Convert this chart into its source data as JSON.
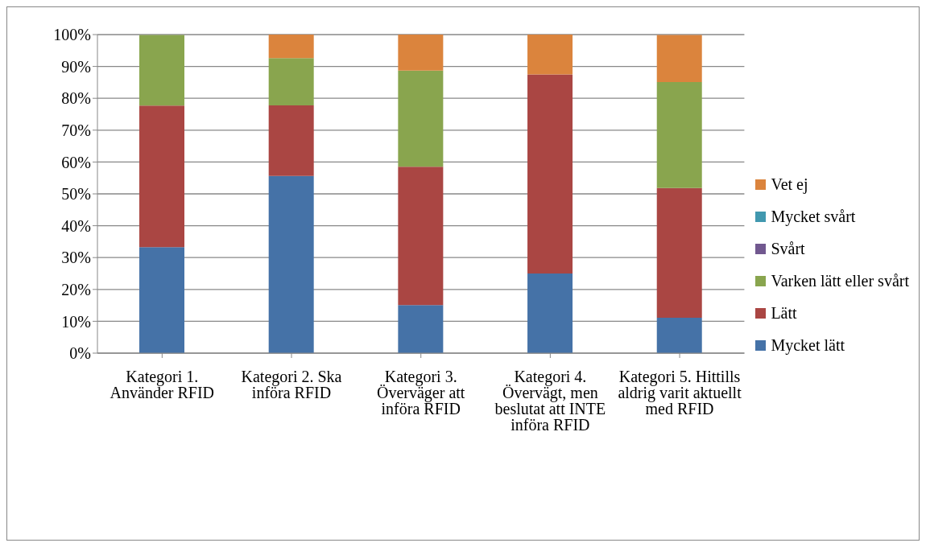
{
  "chart_data": {
    "type": "bar",
    "stacked": true,
    "categories": [
      "Kategori 1. Använder RFID",
      "Kategori 2. Ska införa RFID",
      "Kategori 3. Överväger att införa RFID",
      "Kategori 4. Övervägt, men beslutat att INTE införa RFID",
      "Kategori 5. Hittills aldrig varit aktuellt med RFID"
    ],
    "series": [
      {
        "name": "Mycket lätt",
        "color": "#4572a7",
        "values": [
          33.3,
          55.6,
          15.1,
          25,
          11.1
        ]
      },
      {
        "name": "Lätt",
        "color": "#aa4643",
        "values": [
          44.4,
          22.2,
          43.4,
          62.5,
          40.7
        ]
      },
      {
        "name": "Varken lätt eller svårt",
        "color": "#89a54e",
        "values": [
          22.2,
          14.8,
          30.2,
          0,
          33.3
        ]
      },
      {
        "name": "Svårt",
        "color": "#71588f",
        "values": [
          0,
          0,
          0,
          0,
          0
        ]
      },
      {
        "name": "Mycket svårt",
        "color": "#4198af",
        "values": [
          0,
          0,
          0,
          0,
          0
        ]
      },
      {
        "name": "Vet ej",
        "color": "#db843d",
        "values": [
          0,
          7.4,
          11.3,
          12.5,
          14.8
        ]
      }
    ],
    "ylim": [
      0,
      100
    ],
    "yticks": [
      {
        "value": 0,
        "label": "0%"
      },
      {
        "value": 10,
        "label": "10%"
      },
      {
        "value": 20,
        "label": "20%"
      },
      {
        "value": 30,
        "label": "30%"
      },
      {
        "value": 40,
        "label": "40%"
      },
      {
        "value": 50,
        "label": "50%"
      },
      {
        "value": 60,
        "label": "60%"
      },
      {
        "value": 70,
        "label": "70%"
      },
      {
        "value": 80,
        "label": "80%"
      },
      {
        "value": 90,
        "label": "90%"
      },
      {
        "value": 100,
        "label": "100%"
      }
    ],
    "grid": "y",
    "legend": "right"
  }
}
